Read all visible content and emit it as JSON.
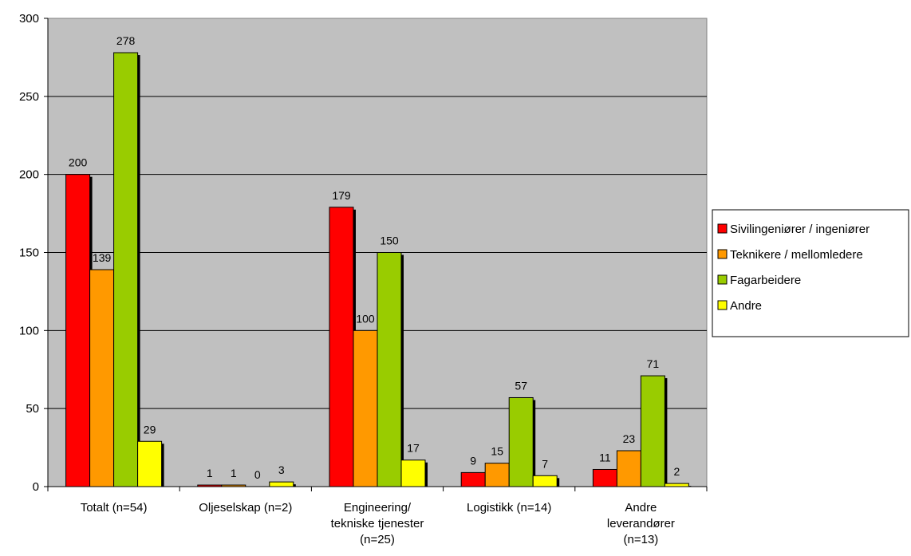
{
  "chart_data": {
    "type": "bar",
    "title": "",
    "xlabel": "",
    "ylabel": "",
    "ylim": [
      0,
      300
    ],
    "yticks": [
      0,
      50,
      100,
      150,
      200,
      250,
      300
    ],
    "grid": true,
    "legend_position": "right",
    "categories": [
      [
        "Totalt (n=54)"
      ],
      [
        "Oljeselskap (n=2)"
      ],
      [
        "Engineering/",
        "tekniske tjenester",
        "(n=25)"
      ],
      [
        "Logistikk (n=14)"
      ],
      [
        "Andre",
        "leverandører",
        "(n=13)"
      ]
    ],
    "series": [
      {
        "name": "Sivilingeniører / ingeniører",
        "color": "#ff0000",
        "values": [
          200,
          1,
          179,
          9,
          11
        ]
      },
      {
        "name": "Teknikere / mellomledere",
        "color": "#ff9900",
        "values": [
          139,
          1,
          100,
          15,
          23
        ]
      },
      {
        "name": "Fagarbeidere",
        "color": "#99cc00",
        "values": [
          278,
          0,
          150,
          57,
          71
        ]
      },
      {
        "name": "Andre",
        "color": "#ffff00",
        "values": [
          29,
          3,
          17,
          7,
          2
        ]
      }
    ],
    "plot_background": "#c0c0c0"
  }
}
